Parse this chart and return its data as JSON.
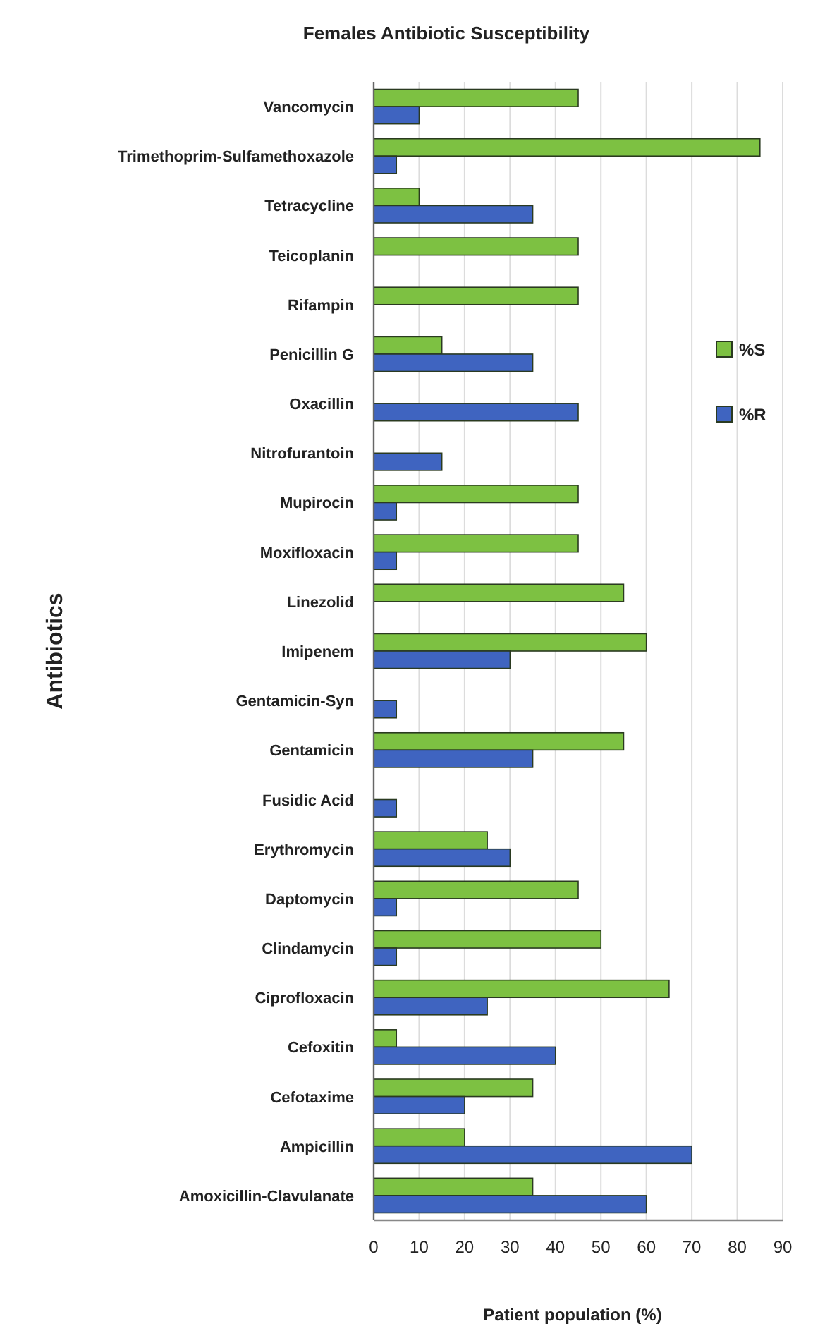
{
  "chart_data": {
    "type": "bar",
    "orientation": "horizontal",
    "title": "Females Antibiotic Susceptibility",
    "xlabel": "Patient population (%)",
    "ylabel": "Antibiotics",
    "categories": [
      "Vancomycin",
      "Trimethoprim-Sulfamethoxazole",
      "Tetracycline",
      "Teicoplanin",
      "Rifampin",
      "Penicillin G",
      "Oxacillin",
      "Nitrofurantoin",
      "Mupirocin",
      "Moxifloxacin",
      "Linezolid",
      "Imipenem",
      "Gentamicin-Syn",
      "Gentamicin",
      "Fusidic Acid",
      "Erythromycin",
      "Daptomycin",
      "Clindamycin",
      "Ciprofloxacin",
      "Cefoxitin",
      "Cefotaxime",
      "Ampicillin",
      "Amoxicillin-Clavulanate"
    ],
    "series": [
      {
        "name": "%S",
        "color": "#7dc142",
        "values": [
          45,
          85,
          10,
          45,
          45,
          15,
          null,
          null,
          45,
          45,
          55,
          60,
          null,
          55,
          null,
          25,
          45,
          50,
          65,
          5,
          35,
          20,
          35
        ]
      },
      {
        "name": "%R",
        "color": "#3f64c0",
        "values": [
          10,
          5,
          35,
          null,
          null,
          35,
          45,
          15,
          5,
          5,
          null,
          30,
          5,
          35,
          5,
          30,
          5,
          5,
          25,
          40,
          20,
          70,
          60
        ]
      }
    ],
    "xlim": [
      0,
      90
    ],
    "xticks": [
      0,
      10,
      20,
      30,
      40,
      50,
      60,
      70,
      80,
      90
    ],
    "grid": "x",
    "legend": "right"
  }
}
